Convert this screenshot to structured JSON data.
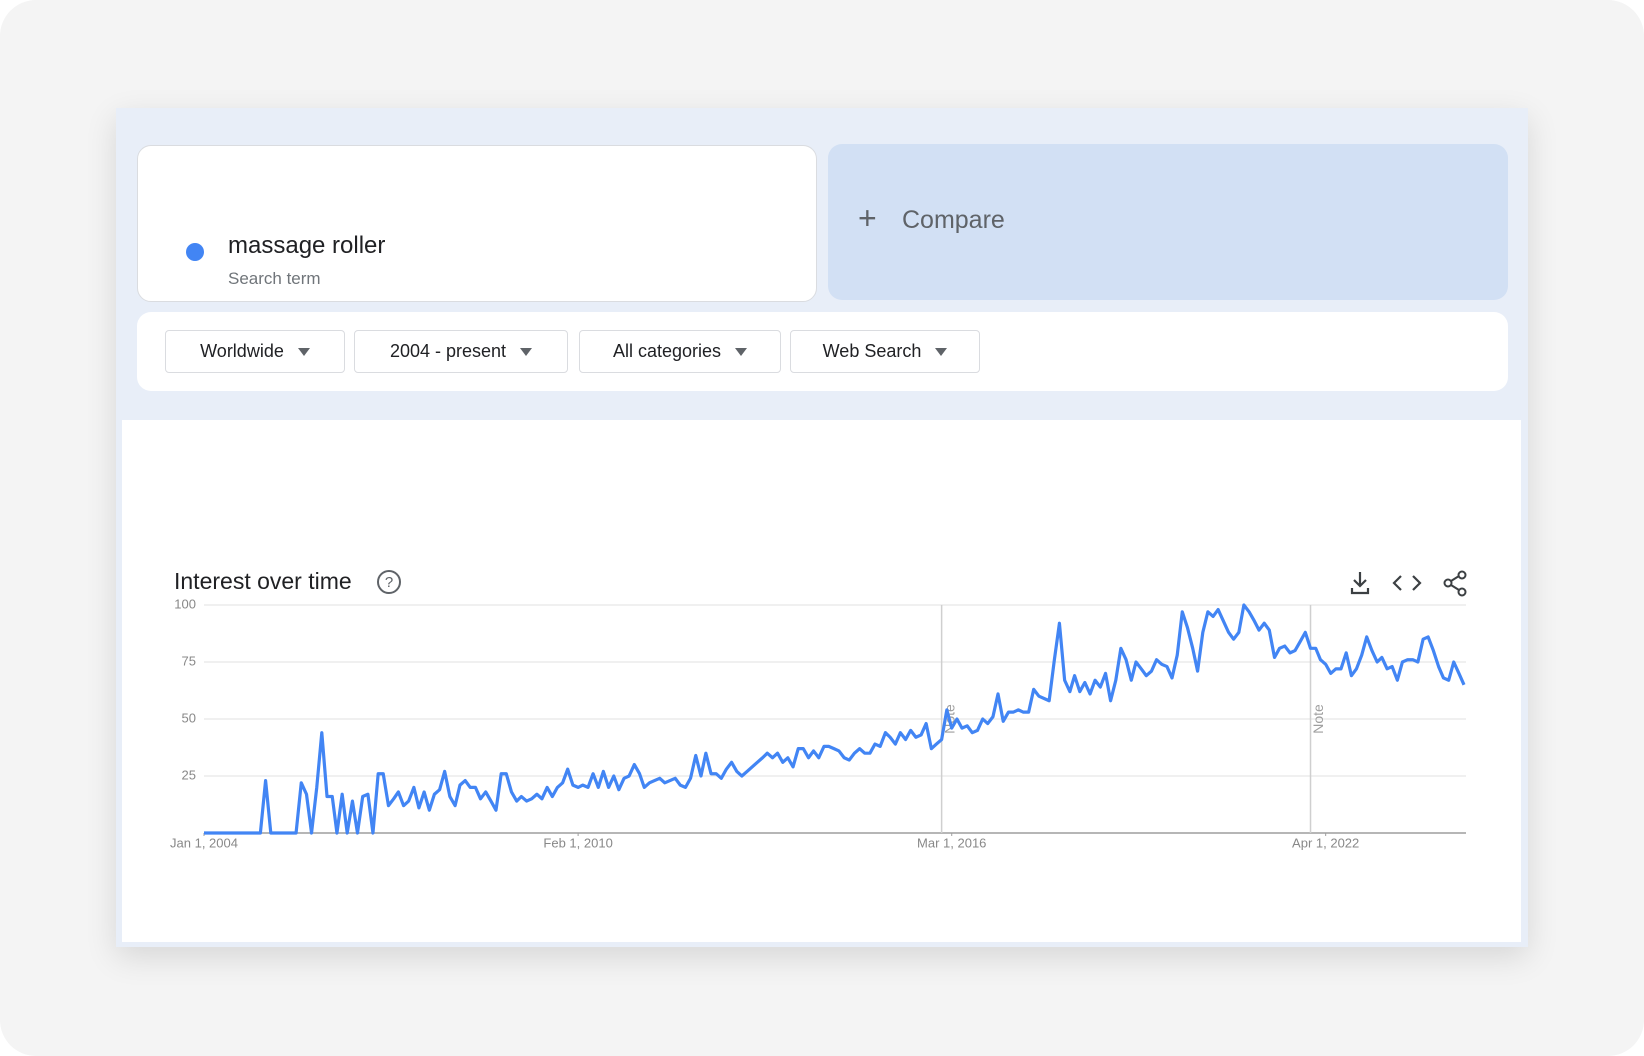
{
  "search": {
    "term": "massage roller",
    "subtitle": "Search term",
    "compare": "Compare"
  },
  "filters": [
    "Worldwide",
    "2004 - present",
    "All categories",
    "Web Search"
  ],
  "chart_data": {
    "type": "line",
    "title": "Interest over time",
    "x": [
      "2004-01-01",
      "2004-02-01",
      "2004-03-01",
      "2004-04-01",
      "2004-05-01",
      "2004-06-01",
      "2004-07-01",
      "2004-08-01",
      "2004-09-01",
      "2004-10-01",
      "2004-11-01",
      "2004-12-01",
      "2005-01-01",
      "2005-02-01",
      "2005-03-01",
      "2005-04-01",
      "2005-05-01",
      "2005-06-01",
      "2005-07-01",
      "2005-08-01",
      "2005-09-01",
      "2005-10-01",
      "2005-11-01",
      "2005-12-01",
      "2006-01-01",
      "2006-02-01",
      "2006-03-01",
      "2006-04-01",
      "2006-05-01",
      "2006-06-01",
      "2006-07-01",
      "2006-08-01",
      "2006-09-01",
      "2006-10-01",
      "2006-11-01",
      "2006-12-01",
      "2007-01-01",
      "2007-02-01",
      "2007-03-01",
      "2007-04-01",
      "2007-05-01",
      "2007-06-01",
      "2007-07-01",
      "2007-08-01",
      "2007-09-01",
      "2007-10-01",
      "2007-11-01",
      "2007-12-01",
      "2008-01-01",
      "2008-02-01",
      "2008-03-01",
      "2008-04-01",
      "2008-05-01",
      "2008-06-01",
      "2008-07-01",
      "2008-08-01",
      "2008-09-01",
      "2008-10-01",
      "2008-11-01",
      "2008-12-01",
      "2009-01-01",
      "2009-02-01",
      "2009-03-01",
      "2009-04-01",
      "2009-05-01",
      "2009-06-01",
      "2009-07-01",
      "2009-08-01",
      "2009-09-01",
      "2009-10-01",
      "2009-11-01",
      "2009-12-01",
      "2010-01-01",
      "2010-02-01",
      "2010-03-01",
      "2010-04-01",
      "2010-05-01",
      "2010-06-01",
      "2010-07-01",
      "2010-08-01",
      "2010-09-01",
      "2010-10-01",
      "2010-11-01",
      "2010-12-01",
      "2011-01-01",
      "2011-02-01",
      "2011-03-01",
      "2011-04-01",
      "2011-05-01",
      "2011-06-01",
      "2011-07-01",
      "2011-08-01",
      "2011-09-01",
      "2011-10-01",
      "2011-11-01",
      "2011-12-01",
      "2012-01-01",
      "2012-02-01",
      "2012-03-01",
      "2012-04-01",
      "2012-05-01",
      "2012-06-01",
      "2012-07-01",
      "2012-08-01",
      "2012-09-01",
      "2012-10-01",
      "2012-11-01",
      "2012-12-01",
      "2013-01-01",
      "2013-02-01",
      "2013-03-01",
      "2013-04-01",
      "2013-05-01",
      "2013-06-01",
      "2013-07-01",
      "2013-08-01",
      "2013-09-01",
      "2013-10-01",
      "2013-11-01",
      "2013-12-01",
      "2014-01-01",
      "2014-02-01",
      "2014-03-01",
      "2014-04-01",
      "2014-05-01",
      "2014-06-01",
      "2014-07-01",
      "2014-08-01",
      "2014-09-01",
      "2014-10-01",
      "2014-11-01",
      "2014-12-01",
      "2015-01-01",
      "2015-02-01",
      "2015-03-01",
      "2015-04-01",
      "2015-05-01",
      "2015-06-01",
      "2015-07-01",
      "2015-08-01",
      "2015-09-01",
      "2015-10-01",
      "2015-11-01",
      "2015-12-01",
      "2016-01-01",
      "2016-02-01",
      "2016-03-01",
      "2016-04-01",
      "2016-05-01",
      "2016-06-01",
      "2016-07-01",
      "2016-08-01",
      "2016-09-01",
      "2016-10-01",
      "2016-11-01",
      "2016-12-01",
      "2017-01-01",
      "2017-02-01",
      "2017-03-01",
      "2017-04-01",
      "2017-05-01",
      "2017-06-01",
      "2017-07-01",
      "2017-08-01",
      "2017-09-01",
      "2017-10-01",
      "2017-11-01",
      "2017-12-01",
      "2018-01-01",
      "2018-02-01",
      "2018-03-01",
      "2018-04-01",
      "2018-05-01",
      "2018-06-01",
      "2018-07-01",
      "2018-08-01",
      "2018-09-01",
      "2018-10-01",
      "2018-11-01",
      "2018-12-01",
      "2019-01-01",
      "2019-02-01",
      "2019-03-01",
      "2019-04-01",
      "2019-05-01",
      "2019-06-01",
      "2019-07-01",
      "2019-08-01",
      "2019-09-01",
      "2019-10-01",
      "2019-11-01",
      "2019-12-01",
      "2020-01-01",
      "2020-02-01",
      "2020-03-01",
      "2020-04-01",
      "2020-05-01",
      "2020-06-01",
      "2020-07-01",
      "2020-08-01",
      "2020-09-01",
      "2020-10-01",
      "2020-11-01",
      "2020-12-01",
      "2021-01-01",
      "2021-02-01",
      "2021-03-01",
      "2021-04-01",
      "2021-05-01",
      "2021-06-01",
      "2021-07-01",
      "2021-08-01",
      "2021-09-01",
      "2021-10-01",
      "2021-11-01",
      "2021-12-01",
      "2022-01-01",
      "2022-02-01",
      "2022-03-01",
      "2022-04-01",
      "2022-05-01",
      "2022-06-01",
      "2022-07-01",
      "2022-08-01",
      "2022-09-01",
      "2022-10-01",
      "2022-11-01",
      "2022-12-01",
      "2023-01-01",
      "2023-02-01",
      "2023-03-01",
      "2023-04-01",
      "2023-05-01",
      "2023-06-01",
      "2023-07-01",
      "2023-08-01",
      "2023-09-01",
      "2023-10-01",
      "2023-11-01",
      "2023-12-01",
      "2024-01-01",
      "2024-02-01",
      "2024-03-01",
      "2024-04-01",
      "2024-05-01",
      "2024-06-01",
      "2024-07-01"
    ],
    "series": [
      {
        "name": "massage roller",
        "color": "#4285f4",
        "values": [
          0,
          0,
          0,
          0,
          0,
          0,
          0,
          0,
          0,
          0,
          0,
          0,
          23,
          0,
          0,
          0,
          0,
          0,
          0,
          22,
          17,
          0,
          20,
          44,
          16,
          16,
          0,
          17,
          0,
          14,
          0,
          16,
          17,
          0,
          26,
          26,
          12,
          15,
          18,
          12,
          14,
          20,
          11,
          18,
          10,
          17,
          19,
          27,
          16,
          12,
          21,
          23,
          20,
          20,
          15,
          18,
          14,
          10,
          26,
          26,
          18,
          14,
          16,
          14,
          15,
          17,
          15,
          20,
          16,
          20,
          22,
          28,
          21,
          20,
          21,
          20,
          26,
          20,
          27,
          20,
          25,
          19,
          24,
          25,
          30,
          26,
          20,
          22,
          23,
          24,
          22,
          23,
          24,
          21,
          20,
          24,
          34,
          25,
          35,
          26,
          26,
          24,
          28,
          31,
          27,
          25,
          27,
          29,
          31,
          33,
          35,
          33,
          35,
          31,
          33,
          29,
          37,
          37,
          33,
          36,
          33,
          38,
          38,
          37,
          36,
          33,
          32,
          35,
          37,
          35,
          35,
          39,
          38,
          44,
          42,
          39,
          44,
          41,
          45,
          42,
          43,
          48,
          37,
          39,
          41,
          54,
          46,
          50,
          46,
          47,
          44,
          45,
          50,
          48,
          51,
          61,
          49,
          53,
          53,
          54,
          53,
          53,
          63,
          60,
          59,
          58,
          76,
          92,
          67,
          62,
          69,
          62,
          66,
          61,
          67,
          64,
          70,
          58,
          67,
          81,
          76,
          67,
          75,
          72,
          69,
          71,
          76,
          74,
          73,
          68,
          78,
          97,
          90,
          81,
          71,
          88,
          97,
          95,
          98,
          93,
          88,
          85,
          88,
          100,
          97,
          93,
          89,
          92,
          89,
          77,
          81,
          82,
          79,
          80,
          84,
          88,
          81,
          81,
          76,
          74,
          70,
          72,
          72,
          79,
          69,
          72,
          78,
          86,
          80,
          75,
          77,
          72,
          73,
          67,
          75,
          76,
          76,
          75,
          85,
          86,
          80,
          73,
          68,
          67,
          75,
          70,
          65
        ]
      }
    ],
    "xlim": [
      "2004-01-01",
      "2024-07-01"
    ],
    "xticks": [
      {
        "value": "2004-01-01",
        "label": "Jan 1, 2004"
      },
      {
        "value": "2010-02-01",
        "label": "Feb 1, 2010"
      },
      {
        "value": "2016-03-01",
        "label": "Mar 1, 2016"
      },
      {
        "value": "2022-04-01",
        "label": "Apr 1, 2022"
      }
    ],
    "ylim": [
      0,
      100
    ],
    "yticks": [
      25,
      50,
      75,
      100
    ],
    "grid": true,
    "annotations": [
      {
        "x": "2016-01-01",
        "label": "Note"
      },
      {
        "x": "2022-01-01",
        "label": "Note"
      }
    ]
  }
}
